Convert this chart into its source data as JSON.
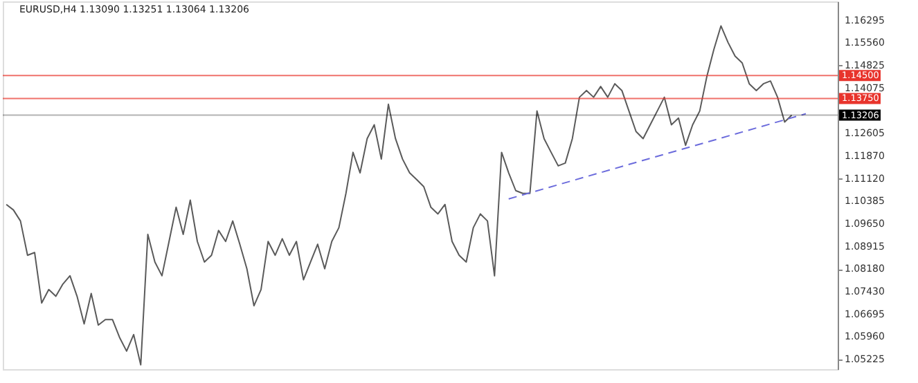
{
  "chart_data": {
    "type": "line",
    "title": "EURUSD,H4 1.13090 1.13251 1.13064 1.13206",
    "categories": [
      null,
      null,
      null,
      null,
      null,
      null,
      null,
      null,
      null,
      null,
      null,
      null,
      null,
      null,
      null,
      null,
      null,
      null,
      null,
      null,
      null,
      null,
      null,
      null,
      null,
      null,
      null,
      null,
      null,
      null,
      null,
      null,
      null,
      null,
      null,
      null,
      null,
      null,
      null,
      null,
      null,
      null,
      null,
      null,
      null,
      null,
      null,
      null,
      null,
      null,
      null,
      null,
      null,
      null,
      null,
      null,
      null,
      null,
      null,
      null,
      null,
      null,
      null,
      null,
      null,
      null,
      null,
      null,
      null,
      null,
      null,
      null,
      null,
      null,
      null,
      null,
      null,
      null,
      null,
      null,
      null,
      null,
      null,
      null,
      null,
      null,
      null,
      null,
      null,
      null,
      null,
      null,
      null,
      null,
      null,
      null,
      null,
      null,
      null,
      null,
      null,
      null,
      null,
      null,
      null,
      null,
      null,
      null,
      null,
      null,
      null,
      null,
      null,
      null,
      null,
      null,
      null,
      null
    ],
    "ylim": [
      1.0491,
      1.1692
    ],
    "tick_labels": "y",
    "grid": false,
    "yticks": [
      1.16295,
      {
        "value": 1.1556,
        "label": "1.15560"
      },
      1.14825,
      1.14075,
      1.12605,
      {
        "value": 1.1187,
        "label": "1.11870"
      },
      {
        "value": 1.1112,
        "label": "1.11120"
      },
      1.10385,
      {
        "value": 1.0965,
        "label": "1.09650"
      },
      1.08915,
      {
        "value": 1.0818,
        "label": "1.08180"
      },
      {
        "value": 1.0743,
        "label": "1.07430"
      },
      1.06695,
      {
        "value": 1.0596,
        "label": "1.05960"
      },
      1.05225
    ],
    "ref_lines": [
      {
        "axis": "y",
        "value": 1.145,
        "label": "1.14500",
        "color": "#e8342c"
      },
      {
        "axis": "y",
        "value": 1.1375,
        "label": "1.13750",
        "color": "#e8342c"
      },
      {
        "axis": "y",
        "value": 1.13206,
        "label": "1.13206",
        "color": "#000000"
      }
    ],
    "series": [
      {
        "color": "#5a5a5a",
        "line_style": "solid",
        "values": [
          1.1029,
          1.1011,
          1.0975,
          1.0863,
          1.0872,
          1.0707,
          1.0751,
          1.0729,
          1.0769,
          1.0796,
          1.0729,
          1.0639,
          1.0738,
          1.0635,
          1.0653,
          1.0653,
          1.0595,
          1.055,
          1.0604,
          1.0505,
          1.0931,
          1.0841,
          1.0796,
          1.0908,
          1.102,
          1.0931,
          1.1043,
          1.0908,
          1.0841,
          1.0863,
          1.0944,
          1.0908,
          1.0975,
          1.0899,
          1.0819,
          1.0698,
          1.0751,
          1.0908,
          1.0863,
          1.0917,
          1.0863,
          1.0908,
          1.0783,
          1.0841,
          1.0899,
          1.0819,
          1.0908,
          1.0953,
          1.1065,
          1.1199,
          1.1132,
          1.1244,
          1.1289,
          1.1177,
          1.1356,
          1.1244,
          1.1177,
          1.1132,
          1.111,
          1.1087,
          1.102,
          1.0998,
          1.1029,
          1.0908,
          1.0863,
          1.0841,
          1.0953,
          1.0998,
          1.0975,
          1.0796,
          1.1199,
          1.1132,
          1.1074,
          1.1065,
          1.1065,
          1.1334,
          1.1244,
          1.1199,
          1.1155,
          1.1164,
          1.1244,
          1.1379,
          1.1401,
          1.1379,
          1.1414,
          1.1379,
          1.1423,
          1.1401,
          1.1334,
          1.1267,
          1.1244,
          1.1289,
          1.1334,
          1.1379,
          1.1289,
          1.1311,
          1.1222,
          1.1289,
          1.1334,
          1.1446,
          1.1535,
          1.1612,
          1.1558,
          1.1513,
          1.1491,
          1.1423,
          1.1401,
          1.1423,
          1.1432,
          1.1379,
          1.1298,
          1.13206,
          null,
          null,
          null,
          null,
          null,
          null
        ]
      },
      {
        "color": "#6b6bdc",
        "line_style": "dashed",
        "values": [
          null,
          null,
          null,
          null,
          null,
          null,
          null,
          null,
          null,
          null,
          null,
          null,
          null,
          null,
          null,
          null,
          null,
          null,
          null,
          null,
          null,
          null,
          null,
          null,
          null,
          null,
          null,
          null,
          null,
          null,
          null,
          null,
          null,
          null,
          null,
          null,
          null,
          null,
          null,
          null,
          null,
          null,
          null,
          null,
          null,
          null,
          null,
          null,
          null,
          null,
          null,
          null,
          null,
          null,
          null,
          null,
          null,
          null,
          null,
          null,
          null,
          null,
          null,
          null,
          null,
          null,
          null,
          null,
          null,
          null,
          null,
          1.1047,
          null,
          null,
          null,
          null,
          null,
          null,
          null,
          null,
          null,
          null,
          null,
          null,
          null,
          null,
          null,
          null,
          null,
          null,
          null,
          null,
          null,
          null,
          null,
          null,
          null,
          null,
          null,
          null,
          null,
          null,
          null,
          null,
          null,
          null,
          null,
          null,
          null,
          null,
          null,
          null,
          null,
          1.1325,
          null,
          null,
          null,
          null
        ]
      }
    ]
  }
}
